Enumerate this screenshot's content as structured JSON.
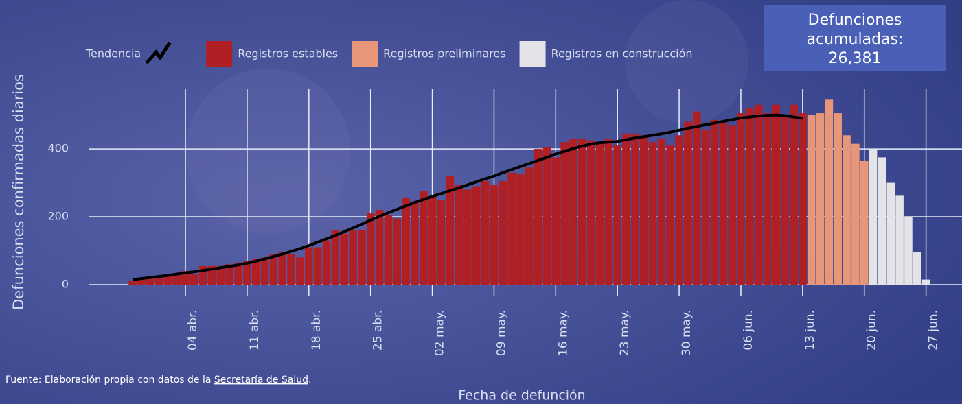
{
  "chart_data": {
    "type": "bar",
    "x_label": "Fecha de defunción",
    "y_label": "Defunciones confirmadas diarios",
    "total_title": [
      "Defunciones",
      "acumuladas:"
    ],
    "total": "26,381",
    "source": {
      "text": "Fuente: Elaboración propia con datos de la",
      "link": "Secretaría de Salud",
      "end": "."
    },
    "categories": [
      null,
      null,
      null,
      null,
      null,
      null,
      "04 abr.",
      null,
      null,
      null,
      null,
      null,
      null,
      "11 abr.",
      null,
      null,
      null,
      null,
      null,
      null,
      "18 abr.",
      null,
      null,
      null,
      null,
      null,
      null,
      "25 abr.",
      null,
      null,
      null,
      null,
      null,
      null,
      "02 may.",
      null,
      null,
      null,
      null,
      null,
      null,
      "09 may.",
      null,
      null,
      null,
      null,
      null,
      null,
      "16 may.",
      null,
      null,
      null,
      null,
      null,
      null,
      "23 may.",
      null,
      null,
      null,
      null,
      null,
      null,
      "30 may.",
      null,
      null,
      null,
      null,
      null,
      null,
      "06 jun.",
      null,
      null,
      null,
      null,
      null,
      null,
      "13 jun.",
      null,
      null,
      null,
      null,
      null,
      null,
      "20 jun.",
      null,
      null,
      null,
      null,
      null,
      null,
      "27 jun."
    ],
    "series": [
      {
        "name": "Tendencia",
        "type": "line",
        "color": "#000000",
        "values": [
          15,
          18,
          21,
          24,
          27,
          31,
          35,
          38,
          42,
          46,
          50,
          54,
          58,
          63,
          69,
          76,
          83,
          90,
          98,
          106,
          115,
          125,
          135,
          145,
          156,
          167,
          178,
          190,
          201,
          212,
          222,
          232,
          242,
          251,
          260,
          268,
          277,
          285,
          294,
          303,
          312,
          320,
          330,
          339,
          348,
          357,
          366,
          375,
          385,
          393,
          401,
          408,
          414,
          418,
          420,
          422,
          427,
          432,
          436,
          440,
          444,
          449,
          455,
          461,
          466,
          471,
          476,
          481,
          486,
          491,
          494,
          497,
          499,
          500,
          498,
          494,
          490,
          null,
          null,
          null,
          null,
          null,
          null,
          null,
          null,
          null,
          null,
          null,
          null,
          null,
          null
        ]
      },
      {
        "name": "Registros estables",
        "color": "#b01f24",
        "values": [
          10,
          15,
          18,
          20,
          25,
          28,
          40,
          30,
          55,
          55,
          55,
          60,
          65,
          70,
          75,
          80,
          90,
          95,
          90,
          80,
          110,
          110,
          130,
          160,
          150,
          160,
          160,
          210,
          220,
          205,
          195,
          255,
          245,
          275,
          260,
          250,
          320,
          295,
          280,
          290,
          305,
          295,
          305,
          330,
          325,
          345,
          400,
          405,
          375,
          420,
          430,
          430,
          425,
          420,
          430,
          410,
          445,
          445,
          440,
          420,
          430,
          410,
          440,
          480,
          510,
          455,
          485,
          475,
          470,
          505,
          520,
          530,
          505,
          530,
          500,
          530,
          505,
          null,
          null,
          null,
          null,
          null,
          null,
          null,
          null,
          null,
          null,
          null,
          null,
          null,
          null
        ]
      },
      {
        "name": "Registros preliminares",
        "color": "#e8967a",
        "values": [
          null,
          null,
          null,
          null,
          null,
          null,
          null,
          null,
          null,
          null,
          null,
          null,
          null,
          null,
          null,
          null,
          null,
          null,
          null,
          null,
          null,
          null,
          null,
          null,
          null,
          null,
          null,
          null,
          null,
          null,
          null,
          null,
          null,
          null,
          null,
          null,
          null,
          null,
          null,
          null,
          null,
          null,
          null,
          null,
          null,
          null,
          null,
          null,
          null,
          null,
          null,
          null,
          null,
          null,
          null,
          null,
          null,
          null,
          null,
          null,
          null,
          null,
          null,
          null,
          null,
          null,
          null,
          null,
          null,
          null,
          null,
          null,
          null,
          null,
          null,
          null,
          null,
          500,
          505,
          545,
          505,
          440,
          415,
          365,
          null,
          null,
          null,
          null,
          null,
          null,
          null
        ]
      },
      {
        "name": "Registros en construcción",
        "color": "#e4e4e8",
        "values": [
          null,
          null,
          null,
          null,
          null,
          null,
          null,
          null,
          null,
          null,
          null,
          null,
          null,
          null,
          null,
          null,
          null,
          null,
          null,
          null,
          null,
          null,
          null,
          null,
          null,
          null,
          null,
          null,
          null,
          null,
          null,
          null,
          null,
          null,
          null,
          null,
          null,
          null,
          null,
          null,
          null,
          null,
          null,
          null,
          null,
          null,
          null,
          null,
          null,
          null,
          null,
          null,
          null,
          null,
          null,
          null,
          null,
          null,
          null,
          null,
          null,
          null,
          null,
          null,
          null,
          null,
          null,
          null,
          null,
          null,
          null,
          null,
          null,
          null,
          null,
          null,
          null,
          null,
          null,
          null,
          null,
          null,
          null,
          null,
          400,
          375,
          300,
          262,
          200,
          95,
          15
        ]
      }
    ],
    "ylim": [
      0,
      580
    ],
    "yticks": [
      0,
      200,
      400
    ],
    "grid": true
  }
}
